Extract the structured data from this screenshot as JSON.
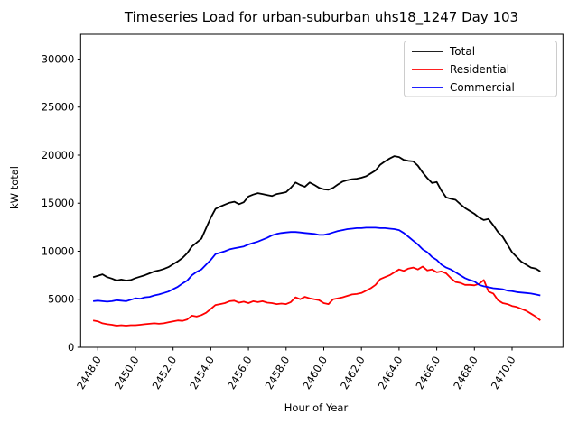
{
  "figure": {
    "title": "Timeseries Load for urban-suburban uhs18_1247  Day 103",
    "xlabel": "Hour of Year",
    "ylabel": "kW total",
    "background": "#ffffff"
  },
  "legend": {
    "position": "upper right",
    "entries": [
      {
        "label": "Total",
        "color": "#000000"
      },
      {
        "label": "Residential",
        "color": "#ff0000"
      },
      {
        "label": "Commercial",
        "color": "#0000ff"
      }
    ]
  },
  "chart_data": {
    "type": "line",
    "title": "Timeseries Load for urban-suburban uhs18_1247  Day 103",
    "xlabel": "Hour of Year",
    "ylabel": "kW total",
    "grid": false,
    "legend_position": "upper right",
    "xlim": [
      2447.09,
      2472.7
    ],
    "ylim": [
      0,
      32580
    ],
    "xticks": {
      "values": [
        2448,
        2450,
        2452,
        2454,
        2456,
        2458,
        2460,
        2462,
        2464,
        2466,
        2468,
        2470
      ],
      "labels": [
        "2448.0",
        "2450.0",
        "2452.0",
        "2454.0",
        "2456.0",
        "2458.0",
        "2460.0",
        "2462.0",
        "2464.0",
        "2466.0",
        "2468.0",
        "2470.0"
      ],
      "rotation_deg": 59
    },
    "yticks": {
      "values": [
        0,
        5000,
        10000,
        15000,
        20000,
        25000,
        30000
      ],
      "labels": [
        "0",
        "5000",
        "10000",
        "15000",
        "20000",
        "25000",
        "30000"
      ]
    },
    "x_start": 2447.75,
    "x_step": 0.25,
    "n_points": 96,
    "series": [
      {
        "name": "Total",
        "color": "#000000",
        "values": [
          7300,
          7450,
          7600,
          7300,
          7150,
          6950,
          7050,
          6950,
          7000,
          7200,
          7350,
          7500,
          7700,
          7900,
          8000,
          8150,
          8350,
          8650,
          8950,
          9300,
          9800,
          10500,
          10900,
          11300,
          12400,
          13500,
          14400,
          14650,
          14850,
          15050,
          15150,
          14900,
          15100,
          15700,
          15900,
          16050,
          15950,
          15850,
          15750,
          15950,
          16050,
          16150,
          16600,
          17150,
          16900,
          16700,
          17150,
          16900,
          16600,
          16450,
          16400,
          16600,
          16950,
          17250,
          17400,
          17500,
          17550,
          17650,
          17800,
          18100,
          18400,
          19000,
          19350,
          19650,
          19900,
          19800,
          19500,
          19400,
          19350,
          18900,
          18200,
          17600,
          17100,
          17200,
          16300,
          15600,
          15450,
          15350,
          14900,
          14500,
          14200,
          13900,
          13500,
          13250,
          13350,
          12700,
          12000,
          11500,
          10700,
          9900,
          9400,
          8900,
          8600,
          8300,
          8200,
          7900
        ]
      },
      {
        "name": "Residential",
        "color": "#ff0000",
        "values": [
          2800,
          2700,
          2500,
          2400,
          2350,
          2250,
          2300,
          2250,
          2300,
          2300,
          2350,
          2400,
          2450,
          2500,
          2450,
          2500,
          2600,
          2700,
          2800,
          2750,
          2900,
          3300,
          3200,
          3350,
          3600,
          4000,
          4400,
          4500,
          4600,
          4800,
          4850,
          4650,
          4750,
          4600,
          4800,
          4700,
          4800,
          4650,
          4600,
          4500,
          4550,
          4500,
          4700,
          5200,
          5000,
          5250,
          5100,
          5000,
          4900,
          4600,
          4500,
          5000,
          5100,
          5200,
          5350,
          5500,
          5550,
          5650,
          5900,
          6150,
          6500,
          7100,
          7300,
          7500,
          7800,
          8100,
          7950,
          8200,
          8300,
          8100,
          8400,
          8000,
          8100,
          7800,
          7900,
          7700,
          7200,
          6800,
          6700,
          6500,
          6500,
          6450,
          6600,
          7000,
          5800,
          5600,
          4900,
          4600,
          4500,
          4300,
          4200,
          4000,
          3800,
          3500,
          3200,
          2800
        ]
      },
      {
        "name": "Commercial",
        "color": "#0000ff",
        "values": [
          4800,
          4850,
          4800,
          4750,
          4800,
          4900,
          4850,
          4800,
          4950,
          5100,
          5050,
          5200,
          5250,
          5400,
          5500,
          5650,
          5800,
          6050,
          6300,
          6650,
          6950,
          7500,
          7850,
          8100,
          8600,
          9100,
          9700,
          9850,
          10000,
          10200,
          10300,
          10400,
          10500,
          10700,
          10850,
          11000,
          11200,
          11400,
          11650,
          11800,
          11900,
          11950,
          12000,
          12000,
          11950,
          11900,
          11850,
          11800,
          11700,
          11700,
          11800,
          11950,
          12100,
          12200,
          12300,
          12350,
          12400,
          12400,
          12450,
          12450,
          12450,
          12400,
          12400,
          12350,
          12300,
          12200,
          11900,
          11500,
          11100,
          10700,
          10200,
          9900,
          9400,
          9100,
          8600,
          8300,
          8100,
          7800,
          7500,
          7200,
          7000,
          6850,
          6500,
          6350,
          6250,
          6150,
          6100,
          6050,
          5900,
          5850,
          5750,
          5700,
          5650,
          5600,
          5500,
          5400
        ]
      }
    ]
  }
}
